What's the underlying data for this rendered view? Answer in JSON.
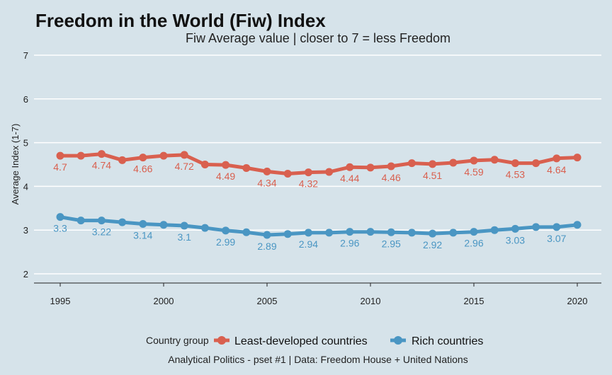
{
  "chart_data": {
    "type": "line",
    "title": "Freedom in the World (Fiw) Index",
    "subtitle": "Fiw Average value | closer to 7 = less Freedom",
    "xlabel": "",
    "ylabel": "Average Index (1-7)",
    "xlim": [
      1995,
      2020
    ],
    "ylim": [
      2,
      7
    ],
    "x_ticks": [
      "1995",
      "2000",
      "2005",
      "2010",
      "2015",
      "2020"
    ],
    "y_ticks": [
      "2",
      "3",
      "4",
      "5",
      "6",
      "7"
    ],
    "x": [
      1995,
      1996,
      1997,
      1998,
      1999,
      2000,
      2001,
      2002,
      2003,
      2004,
      2005,
      2006,
      2007,
      2008,
      2009,
      2010,
      2011,
      2012,
      2013,
      2014,
      2015,
      2016,
      2017,
      2018,
      2019,
      2020
    ],
    "series": [
      {
        "name": "Least-developed countries",
        "color": "#d9604f",
        "values": [
          4.7,
          4.7,
          4.74,
          4.6,
          4.66,
          4.7,
          4.72,
          4.5,
          4.49,
          4.42,
          4.34,
          4.29,
          4.32,
          4.33,
          4.44,
          4.43,
          4.46,
          4.53,
          4.51,
          4.54,
          4.59,
          4.61,
          4.53,
          4.53,
          4.64,
          4.66
        ],
        "labels": [
          {
            "x": 1995,
            "text": "4.7"
          },
          {
            "x": 1997,
            "text": "4.74"
          },
          {
            "x": 1999,
            "text": "4.66"
          },
          {
            "x": 2001,
            "text": "4.72"
          },
          {
            "x": 2003,
            "text": "4.49"
          },
          {
            "x": 2005,
            "text": "4.34"
          },
          {
            "x": 2007,
            "text": "4.32"
          },
          {
            "x": 2009,
            "text": "4.44"
          },
          {
            "x": 2011,
            "text": "4.46"
          },
          {
            "x": 2013,
            "text": "4.51"
          },
          {
            "x": 2015,
            "text": "4.59"
          },
          {
            "x": 2017,
            "text": "4.53"
          },
          {
            "x": 2019,
            "text": "4.64"
          }
        ]
      },
      {
        "name": "Rich countries",
        "color": "#4a96c3",
        "values": [
          3.3,
          3.22,
          3.22,
          3.18,
          3.14,
          3.12,
          3.1,
          3.05,
          2.99,
          2.95,
          2.89,
          2.91,
          2.94,
          2.94,
          2.96,
          2.96,
          2.95,
          2.94,
          2.92,
          2.94,
          2.96,
          3.0,
          3.03,
          3.07,
          3.07,
          3.12
        ],
        "labels": [
          {
            "x": 1995,
            "text": "3.3"
          },
          {
            "x": 1997,
            "text": "3.22"
          },
          {
            "x": 1999,
            "text": "3.14"
          },
          {
            "x": 2001,
            "text": "3.1"
          },
          {
            "x": 2003,
            "text": "2.99"
          },
          {
            "x": 2005,
            "text": "2.89"
          },
          {
            "x": 2007,
            "text": "2.94"
          },
          {
            "x": 2009,
            "text": "2.96"
          },
          {
            "x": 2011,
            "text": "2.95"
          },
          {
            "x": 2013,
            "text": "2.92"
          },
          {
            "x": 2015,
            "text": "2.96"
          },
          {
            "x": 2017,
            "text": "3.03"
          },
          {
            "x": 2019,
            "text": "3.07"
          }
        ]
      }
    ],
    "legend": {
      "title": "Country group",
      "position": "bottom",
      "entries": [
        "Least-developed countries",
        "Rich countries"
      ]
    },
    "caption": "Analytical Politics - pset #1  |  Data: Freedom House + United Nations",
    "grid": "horizontal-major",
    "background": "#d6e3ea",
    "grid_color": "#ffffff"
  }
}
